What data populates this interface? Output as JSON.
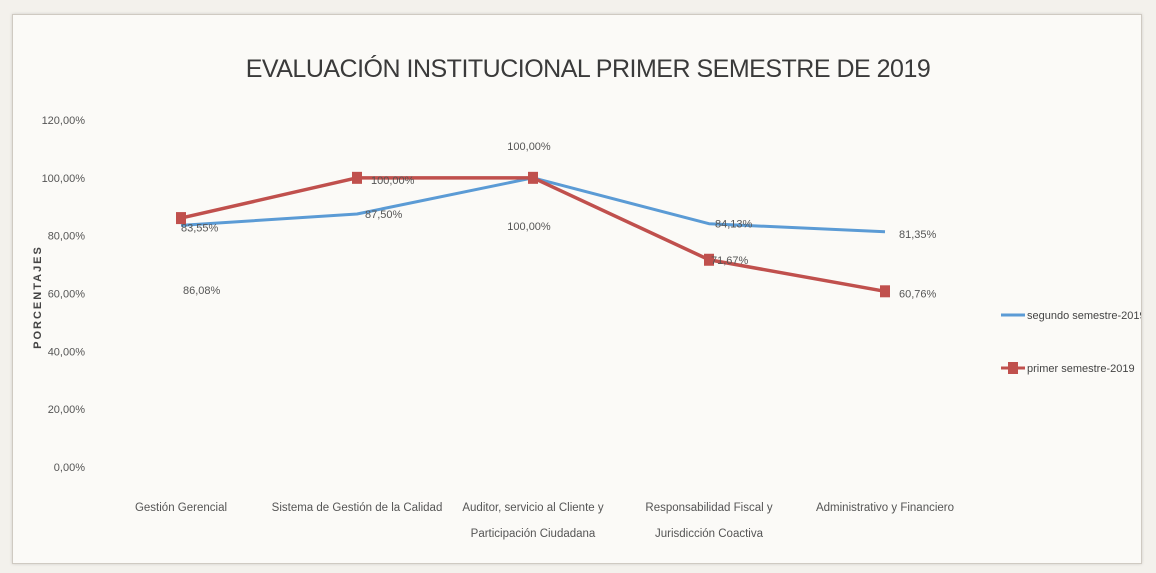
{
  "chart_data": {
    "type": "line",
    "title": "EVALUACIÓN INSTITUCIONAL PRIMER SEMESTRE DE 2019",
    "xlabel": "",
    "ylabel": "PORCENTAJES",
    "ylim": [
      0,
      120
    ],
    "y_ticks": [
      "0,00%",
      "20,00%",
      "40,00%",
      "60,00%",
      "80,00%",
      "100,00%",
      "120,00%"
    ],
    "categories": [
      [
        "Gestión Gerencial"
      ],
      [
        "Sistema de Gestión de la Calidad"
      ],
      [
        "Auditor, servicio al Cliente y",
        "Participación Ciudadana"
      ],
      [
        "Responsabilidad Fiscal y",
        "Jurisdicción Coactiva"
      ],
      [
        "Administrativo y Financiero"
      ]
    ],
    "series": [
      {
        "name": "segundo semestre-2019",
        "color": "#5b9bd5",
        "values": [
          83.55,
          87.5,
          100.0,
          84.13,
          81.35
        ],
        "labels": [
          "83,55%",
          "87,50%",
          "100,00%",
          "84,13%",
          "81,35%"
        ]
      },
      {
        "name": "primer semestre-2019",
        "color": "#c0504d",
        "marker": "square",
        "values": [
          86.08,
          100.0,
          100.0,
          71.67,
          60.76
        ],
        "labels": [
          "86,08%",
          "100,00%",
          "100,00%",
          "71,67%",
          "60,76%"
        ]
      }
    ],
    "grid": false,
    "legend_position": "right"
  }
}
